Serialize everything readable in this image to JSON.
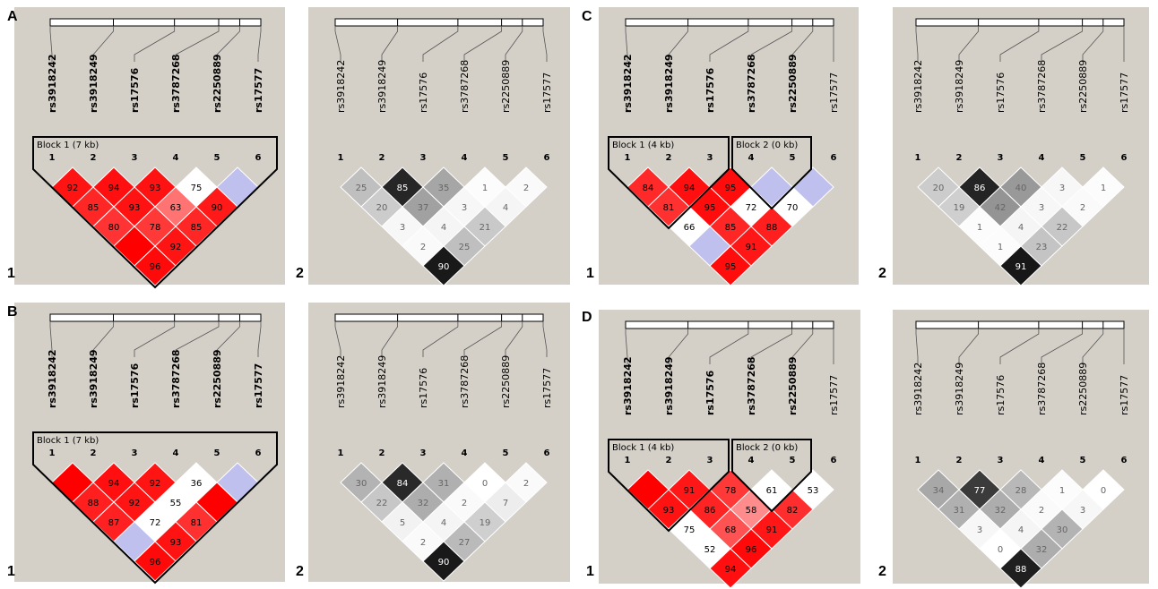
{
  "snps": [
    "rs3918242",
    "rs3918249",
    "rs17576",
    "rs3787268",
    "rs2250889",
    "rs17577"
  ],
  "marker_indices": [
    "1",
    "2",
    "3",
    "4",
    "5",
    "6"
  ],
  "colors": {
    "panel_bg": "#d4d0c8",
    "red": "#ff0000",
    "lavender": "#c0c0ee",
    "white": "#ffffff",
    "black": "#000000"
  },
  "panels": [
    {
      "id": "A1",
      "letter": "A",
      "number": "1",
      "type": "dprime",
      "bold_snps": [
        0,
        1,
        2,
        3,
        4,
        5
      ],
      "blocks": [
        {
          "label": "Block 1 (7 kb)",
          "start": 0,
          "end": 5
        }
      ],
      "cells": {
        "0-1": {
          "v": "92",
          "i": 0.92
        },
        "1-2": {
          "v": "94",
          "i": 0.94
        },
        "2-3": {
          "v": "93",
          "i": 0.93
        },
        "3-4": {
          "v": "75",
          "i": 0.0
        },
        "4-5": {
          "v": "",
          "lav": true
        },
        "0-2": {
          "v": "85",
          "i": 0.85
        },
        "1-3": {
          "v": "93",
          "i": 0.93
        },
        "2-4": {
          "v": "63",
          "i": 0.55
        },
        "3-5": {
          "v": "90",
          "i": 0.9
        },
        "0-3": {
          "v": "80",
          "i": 0.8
        },
        "1-4": {
          "v": "78",
          "i": 0.78
        },
        "2-5": {
          "v": "85",
          "i": 0.85
        },
        "0-4": {
          "v": "",
          "i": 1.0
        },
        "1-5": {
          "v": "92",
          "i": 0.92
        },
        "0-5": {
          "v": "96",
          "i": 0.96
        }
      }
    },
    {
      "id": "A2",
      "letter": "",
      "number": "2",
      "type": "r2",
      "bold_snps": [],
      "blocks": [],
      "cells": {
        "0-1": {
          "v": "25",
          "i": 0.25
        },
        "1-2": {
          "v": "85",
          "i": 0.85
        },
        "2-3": {
          "v": "35",
          "i": 0.35
        },
        "3-4": {
          "v": "1",
          "i": 0.01
        },
        "4-5": {
          "v": "2",
          "i": 0.02
        },
        "0-2": {
          "v": "20",
          "i": 0.2
        },
        "1-3": {
          "v": "37",
          "i": 0.37
        },
        "2-4": {
          "v": "3",
          "i": 0.03
        },
        "3-5": {
          "v": "4",
          "i": 0.04
        },
        "0-3": {
          "v": "3",
          "i": 0.03
        },
        "1-4": {
          "v": "4",
          "i": 0.04
        },
        "2-5": {
          "v": "21",
          "i": 0.21
        },
        "0-4": {
          "v": "2",
          "i": 0.02
        },
        "1-5": {
          "v": "25",
          "i": 0.25
        },
        "0-5": {
          "v": "90",
          "i": 0.9
        }
      }
    },
    {
      "id": "C1",
      "letter": "C",
      "number": "1",
      "type": "dprime",
      "bold_snps": [
        0,
        1,
        2,
        3,
        4
      ],
      "blocks": [
        {
          "label": "Block 1 (4 kb)",
          "start": 0,
          "end": 2
        },
        {
          "label": "Block 2 (0 kb)",
          "start": 3,
          "end": 4
        }
      ],
      "cells": {
        "0-1": {
          "v": "84",
          "i": 0.84
        },
        "1-2": {
          "v": "94",
          "i": 0.94
        },
        "2-3": {
          "v": "95",
          "i": 0.95
        },
        "3-4": {
          "v": "",
          "lav": true
        },
        "4-5": {
          "v": "",
          "lav": true
        },
        "0-2": {
          "v": "81",
          "i": 0.81
        },
        "1-3": {
          "v": "95",
          "i": 0.95
        },
        "2-4": {
          "v": "72",
          "i": 0.0
        },
        "3-5": {
          "v": "70",
          "i": 0.0
        },
        "0-3": {
          "v": "66",
          "i": 0.0
        },
        "1-4": {
          "v": "85",
          "i": 0.85
        },
        "2-5": {
          "v": "88",
          "i": 0.88
        },
        "0-4": {
          "v": "",
          "lav": true
        },
        "1-5": {
          "v": "91",
          "i": 0.91
        },
        "0-5": {
          "v": "95",
          "i": 0.95
        }
      }
    },
    {
      "id": "C2",
      "letter": "",
      "number": "2",
      "type": "r2",
      "bold_snps": [],
      "blocks": [],
      "cells": {
        "0-1": {
          "v": "20",
          "i": 0.2
        },
        "1-2": {
          "v": "86",
          "i": 0.86
        },
        "2-3": {
          "v": "40",
          "i": 0.4
        },
        "3-4": {
          "v": "3",
          "i": 0.03
        },
        "4-5": {
          "v": "1",
          "i": 0.01
        },
        "0-2": {
          "v": "19",
          "i": 0.19
        },
        "1-3": {
          "v": "42",
          "i": 0.42
        },
        "2-4": {
          "v": "3",
          "i": 0.03
        },
        "3-5": {
          "v": "2",
          "i": 0.02
        },
        "0-3": {
          "v": "1",
          "i": 0.01
        },
        "1-4": {
          "v": "4",
          "i": 0.04
        },
        "2-5": {
          "v": "22",
          "i": 0.22
        },
        "0-4": {
          "v": "1",
          "i": 0.01
        },
        "1-5": {
          "v": "23",
          "i": 0.23
        },
        "0-5": {
          "v": "91",
          "i": 0.91
        }
      }
    },
    {
      "id": "B1",
      "letter": "B",
      "number": "1",
      "type": "dprime",
      "bold_snps": [
        0,
        1,
        2,
        3,
        4,
        5
      ],
      "blocks": [
        {
          "label": "Block 1 (7 kb)",
          "start": 0,
          "end": 5
        }
      ],
      "cells": {
        "0-1": {
          "v": "",
          "i": 1.0
        },
        "1-2": {
          "v": "94",
          "i": 0.94
        },
        "2-3": {
          "v": "92",
          "i": 0.92
        },
        "3-4": {
          "v": "36",
          "i": 0.0
        },
        "4-5": {
          "v": "",
          "lav": true
        },
        "0-2": {
          "v": "88",
          "i": 0.88
        },
        "1-3": {
          "v": "92",
          "i": 0.92
        },
        "2-4": {
          "v": "55",
          "i": 0.0
        },
        "3-5": {
          "v": "",
          "i": 1.0
        },
        "0-3": {
          "v": "87",
          "i": 0.87
        },
        "1-4": {
          "v": "72",
          "i": 0.0
        },
        "2-5": {
          "v": "81",
          "i": 0.81
        },
        "0-4": {
          "v": "",
          "lav": true
        },
        "1-5": {
          "v": "93",
          "i": 0.93
        },
        "0-5": {
          "v": "96",
          "i": 0.96
        }
      }
    },
    {
      "id": "B2",
      "letter": "",
      "number": "2",
      "type": "r2",
      "bold_snps": [],
      "blocks": [],
      "cells": {
        "0-1": {
          "v": "30",
          "i": 0.3
        },
        "1-2": {
          "v": "84",
          "i": 0.84
        },
        "2-3": {
          "v": "31",
          "i": 0.31
        },
        "3-4": {
          "v": "0",
          "i": 0.0
        },
        "4-5": {
          "v": "2",
          "i": 0.02
        },
        "0-2": {
          "v": "22",
          "i": 0.22
        },
        "1-3": {
          "v": "32",
          "i": 0.32
        },
        "2-4": {
          "v": "2",
          "i": 0.02
        },
        "3-5": {
          "v": "7",
          "i": 0.07
        },
        "0-3": {
          "v": "5",
          "i": 0.05
        },
        "1-4": {
          "v": "4",
          "i": 0.04
        },
        "2-5": {
          "v": "19",
          "i": 0.19
        },
        "0-4": {
          "v": "2",
          "i": 0.02
        },
        "1-5": {
          "v": "27",
          "i": 0.27
        },
        "0-5": {
          "v": "90",
          "i": 0.9
        }
      }
    },
    {
      "id": "D1",
      "letter": "D",
      "number": "1",
      "type": "dprime",
      "bold_snps": [
        0,
        1,
        2,
        3,
        4
      ],
      "blocks": [
        {
          "label": "Block 1 (4 kb)",
          "start": 0,
          "end": 2
        },
        {
          "label": "Block 2 (0 kb)",
          "start": 3,
          "end": 4
        }
      ],
      "cells": {
        "0-1": {
          "v": "",
          "i": 1.0
        },
        "1-2": {
          "v": "91",
          "i": 0.91
        },
        "2-3": {
          "v": "78",
          "i": 0.78
        },
        "3-4": {
          "v": "61",
          "i": 0.0
        },
        "4-5": {
          "v": "53",
          "i": 0.0
        },
        "0-2": {
          "v": "93",
          "i": 0.93
        },
        "1-3": {
          "v": "86",
          "i": 0.86
        },
        "2-4": {
          "v": "58",
          "i": 0.45
        },
        "3-5": {
          "v": "82",
          "i": 0.82
        },
        "0-3": {
          "v": "75",
          "i": 0.0
        },
        "1-4": {
          "v": "68",
          "i": 0.68
        },
        "2-5": {
          "v": "91",
          "i": 0.91
        },
        "0-4": {
          "v": "52",
          "i": 0.0
        },
        "1-5": {
          "v": "96",
          "i": 0.96
        },
        "0-5": {
          "v": "94",
          "i": 0.94
        }
      }
    },
    {
      "id": "D2",
      "letter": "",
      "number": "2",
      "type": "r2",
      "bold_snps": [],
      "blocks": [],
      "cells": {
        "0-1": {
          "v": "34",
          "i": 0.34
        },
        "1-2": {
          "v": "77",
          "i": 0.77
        },
        "2-3": {
          "v": "28",
          "i": 0.28
        },
        "3-4": {
          "v": "1",
          "i": 0.01
        },
        "4-5": {
          "v": "0",
          "i": 0.0
        },
        "0-2": {
          "v": "31",
          "i": 0.31
        },
        "1-3": {
          "v": "32",
          "i": 0.32
        },
        "2-4": {
          "v": "2",
          "i": 0.02
        },
        "3-5": {
          "v": "3",
          "i": 0.03
        },
        "0-3": {
          "v": "3",
          "i": 0.03
        },
        "1-4": {
          "v": "4",
          "i": 0.04
        },
        "2-5": {
          "v": "30",
          "i": 0.3
        },
        "0-4": {
          "v": "0",
          "i": 0.0
        },
        "1-5": {
          "v": "32",
          "i": 0.32
        },
        "0-5": {
          "v": "88",
          "i": 0.88
        }
      }
    }
  ]
}
